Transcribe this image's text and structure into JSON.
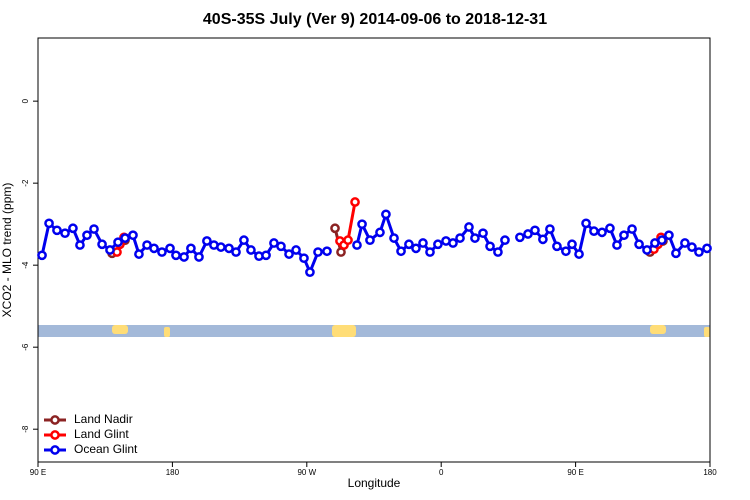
{
  "chart_data": {
    "type": "line",
    "title": "40S-35S July (Ver 9)   2014-09-06 to 2018-12-31",
    "x_label": "Longitude",
    "y_label": "XCO2 - MLO trend (ppm)",
    "xlim": [
      90,
      540
    ],
    "ylim": [
      -8.8,
      1.54
    ],
    "xticks": [
      {
        "value": 90,
        "label": "90 E"
      },
      180,
      {
        "value": 270,
        "label": "90 W"
      },
      {
        "value": 360,
        "label": "0"
      },
      {
        "value": 450,
        "label": "90 E"
      },
      {
        "value": 540,
        "label": "180"
      }
    ],
    "yticks": [
      0,
      -2,
      -4,
      -6,
      -8
    ],
    "legend": "bottom-left",
    "series": [
      {
        "name": "Land Nadir",
        "color": "#8b2323",
        "x": [
          139.6,
          148.3,
          288.9,
          292.9,
          294.2,
          499.8,
          508.5
        ],
        "values": [
          -3.71,
          -3.39,
          -3.1,
          -3.68,
          -3.49,
          -3.68,
          -3.41
        ]
      },
      {
        "name": "Land Glint",
        "color": "#ff0000",
        "x": [
          142.9,
          144.9,
          147.6,
          292.2,
          294.9,
          297.6,
          302.3,
          502.5,
          505.2,
          507.2
        ],
        "values": [
          -3.68,
          -3.49,
          -3.32,
          -3.41,
          -3.51,
          -3.39,
          -2.46,
          -3.61,
          -3.49,
          -3.32
        ]
      },
      {
        "name": "Ocean Glint",
        "color": "#0000ee",
        "x": [
          92.7,
          97.4,
          102.7,
          108.1,
          113.4,
          118.1,
          122.8,
          127.5,
          132.9,
          138.2,
          143.6,
          148.3,
          153.6,
          157.6,
          163.0,
          167.7,
          173.0,
          178.4,
          182.4,
          187.8,
          192.4,
          197.8,
          203.1,
          207.8,
          212.5,
          217.9,
          222.6,
          227.9,
          232.6,
          238.0,
          242.7,
          248.0,
          252.7,
          258.1,
          262.8,
          268.1,
          272.1,
          277.5,
          283.5,
          303.6,
          307.0,
          312.3,
          319.0,
          323.0,
          328.4,
          333.1,
          338.4,
          343.1,
          347.8,
          352.5,
          357.8,
          363.2,
          367.9,
          372.6,
          378.6,
          382.6,
          388.0,
          392.7,
          398.0,
          402.7,
          412.7,
          418.1,
          422.8,
          428.1,
          432.8,
          437.5,
          443.5,
          447.6,
          452.3,
          457.0,
          462.3,
          467.7,
          473.0,
          477.7,
          482.4,
          487.8,
          492.5,
          497.8,
          503.1,
          507.8,
          512.5,
          517.2,
          523.2,
          527.9,
          532.6,
          538.0
        ],
        "values": [
          -3.76,
          -2.98,
          -3.15,
          -3.22,
          -3.1,
          -3.51,
          -3.27,
          -3.12,
          -3.49,
          -3.63,
          -3.44,
          -3.34,
          -3.27,
          -3.73,
          -3.51,
          -3.59,
          -3.68,
          -3.59,
          -3.76,
          -3.8,
          -3.59,
          -3.8,
          -3.41,
          -3.51,
          -3.56,
          -3.59,
          -3.68,
          -3.39,
          -3.63,
          -3.78,
          -3.76,
          -3.46,
          -3.54,
          -3.73,
          -3.63,
          -3.83,
          -4.17,
          -3.68,
          -3.66,
          -3.51,
          -3.0,
          -3.39,
          -3.2,
          -2.76,
          -3.34,
          -3.66,
          -3.49,
          -3.59,
          -3.46,
          -3.68,
          -3.49,
          -3.41,
          -3.46,
          -3.34,
          -3.07,
          -3.34,
          -3.22,
          -3.54,
          -3.68,
          -3.39,
          -3.32,
          -3.24,
          -3.15,
          -3.37,
          -3.12,
          -3.54,
          -3.66,
          -3.49,
          -3.73,
          -2.98,
          -3.17,
          -3.2,
          -3.1,
          -3.51,
          -3.27,
          -3.12,
          -3.49,
          -3.63,
          -3.46,
          -3.39,
          -3.27,
          -3.71,
          -3.46,
          -3.56,
          -3.68,
          -3.59
        ]
      }
    ]
  }
}
